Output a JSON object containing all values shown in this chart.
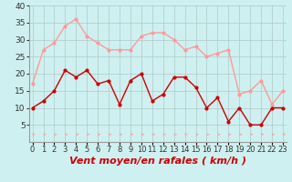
{
  "xlabel": "Vent moyen/en rafales ( km/h )",
  "background_color": "#cff0f0",
  "grid_color": "#b0c8c8",
  "hours": [
    0,
    1,
    2,
    3,
    4,
    5,
    6,
    7,
    8,
    9,
    10,
    11,
    12,
    13,
    14,
    15,
    16,
    17,
    18,
    19,
    20,
    21,
    22,
    23
  ],
  "wind_avg": [
    10,
    12,
    15,
    21,
    19,
    21,
    17,
    18,
    11,
    18,
    20,
    12,
    14,
    19,
    19,
    16,
    10,
    13,
    6,
    10,
    5,
    5,
    10,
    10
  ],
  "wind_gust": [
    17,
    27,
    29,
    34,
    36,
    31,
    29,
    27,
    27,
    27,
    31,
    32,
    32,
    30,
    27,
    28,
    25,
    26,
    27,
    14,
    15,
    18,
    11,
    15
  ],
  "avg_color": "#cc0000",
  "gust_color": "#ff9999",
  "ylim": [
    0,
    40
  ],
  "yticks": [
    5,
    10,
    15,
    20,
    25,
    30,
    35,
    40
  ],
  "marker_size": 2,
  "linewidth": 1.0,
  "xlabel_fontsize": 8,
  "tick_fontsize": 6.5
}
